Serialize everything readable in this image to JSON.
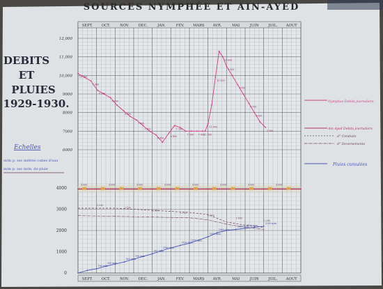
{
  "chart_data": {
    "type": "line",
    "title": "SOURCES NYMPHÉE ET AIN-AYED",
    "side_title": [
      "DEBITS",
      "ET",
      "PLUIES",
      "1929-1930."
    ],
    "scales_title": "Echelles",
    "scales_lines": [
      "m/m p. sec mètres cubes d'eau",
      "m/m p. sec m/m. de pluie"
    ],
    "months_top": [
      "SEPT.",
      "OCT.",
      "NOV.",
      "DEC.",
      "JAN.",
      "FEV.",
      "MARS",
      "AVR.",
      "MAI",
      "JUIN",
      "JUIL.",
      "AOUT"
    ],
    "months_bottom": [
      "SEPT.",
      "OCT.",
      "NOV.",
      "DEC.",
      "JAN.",
      "FEV.",
      "MARS",
      "AVR.",
      "MAI",
      "JUIN",
      "JUIL.",
      "AOUT"
    ],
    "y_ticks_upper": [
      "12,000",
      "11,000",
      "10,000",
      "9000",
      "8000",
      "7000",
      "6000"
    ],
    "y_ticks_lower": [
      "4000",
      "3000",
      "2000",
      "1000",
      "0"
    ],
    "grid": true,
    "legend": [
      {
        "label": "Nymphee Debits journaliers",
        "color": "#cf3c86"
      },
      {
        "label": "Ain Ayed Debits journaliers",
        "color": "#b0305a"
      },
      {
        "label": "d° Conduits",
        "color": "#6a3d5a"
      },
      {
        "label": "d° Deversements",
        "color": "#6a3d5a"
      },
      {
        "label": "Pluies cumulées",
        "color": "#4a55b5"
      }
    ],
    "series": [
      {
        "name": "Nymphee Debits journaliers",
        "color": "#cf3c86",
        "x": [
          0,
          0.35,
          0.7,
          1.05,
          1.4,
          1.75,
          2.1,
          2.45,
          2.8,
          3.15,
          3.5,
          3.85,
          4.2,
          4.55,
          4.9,
          5.2,
          5.5,
          5.8,
          6.1,
          6.4,
          6.7,
          6.85,
          7.0,
          7.2,
          7.4,
          7.6,
          7.8,
          8.0,
          8.3,
          8.6,
          8.9,
          9.2,
          9.5,
          9.8,
          10.1
        ],
        "y": [
          10100,
          9900,
          9700,
          9200,
          9000,
          8800,
          8400,
          8100,
          7800,
          7600,
          7300,
          7000,
          6800,
          6400,
          6900,
          7300,
          7200,
          7000,
          7000,
          7000,
          7000,
          7000,
          7400,
          8400,
          9900,
          11300,
          11000,
          10500,
          10000,
          9500,
          9000,
          8500,
          8000,
          7500,
          7200
        ]
      },
      {
        "name": "Ain Ayed Debits journaliers",
        "color": "#b0305a",
        "x": [
          0,
          1,
          2,
          3,
          4,
          5,
          6,
          7,
          8,
          9,
          10,
          11,
          12
        ],
        "y": [
          3950,
          3950,
          3950,
          3950,
          3950,
          3950,
          3950,
          3950,
          3950,
          3950,
          3950,
          3950,
          3950
        ]
      },
      {
        "name": "Pluies cumulées",
        "color": "#4a55b5",
        "x": [
          0,
          0.5,
          1,
          1.5,
          2,
          2.5,
          3,
          3.5,
          4,
          4.5,
          5,
          5.5,
          6,
          6.5,
          7,
          7.5,
          8,
          8.5,
          9,
          9.5,
          10
        ],
        "y": [
          0,
          120,
          200,
          320,
          420,
          520,
          650,
          780,
          900,
          1050,
          1180,
          1300,
          1400,
          1550,
          1700,
          1900,
          2000,
          2050,
          2100,
          2150,
          2200
        ]
      }
    ],
    "daily_labels": [
      "10 100",
      "9 900",
      "9 200",
      "8 800",
      "8 400",
      "7 800",
      "7 300",
      "6 800",
      "6 400",
      "7 300",
      "7 000",
      "7 000",
      "11 300",
      "11 000",
      "10 500",
      "10 000",
      "9 500",
      "9 000",
      "8 500",
      "8 000",
      "7 200",
      "4 000",
      "4 000",
      "4 000",
      "4 000",
      "4 000",
      "4 000",
      "4 000",
      "4 000",
      "3 100",
      "3 100",
      "2 900",
      "2 700",
      "2 500",
      "2 400",
      "2 200",
      "180 m/m",
      "350 m/m",
      "560 m/m",
      "790 m/m",
      "982 m/m",
      "1180 m/m",
      "1400 m/m",
      "1578 m/m",
      "1802 m/m",
      "1905 m/m",
      "2080 m/m",
      "2150 m/m",
      "2200 m/m"
    ]
  }
}
